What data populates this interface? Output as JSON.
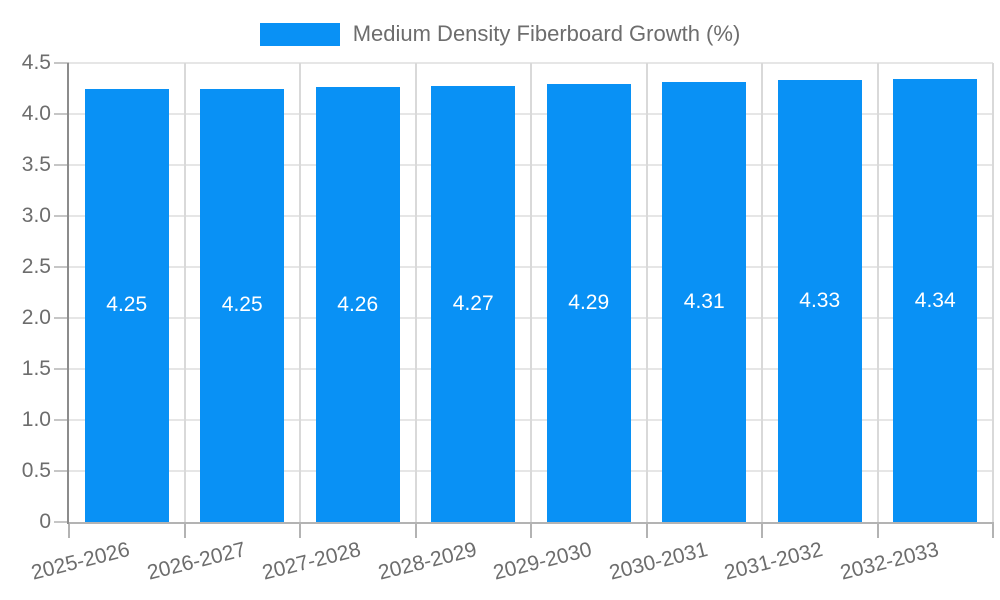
{
  "legend": {
    "label": "Medium Density Fiberboard Growth (%)"
  },
  "chart_data": {
    "type": "bar",
    "title": "Medium Density Fiberboard Growth (%)",
    "categories": [
      "2025-2026",
      "2026-2027",
      "2027-2028",
      "2028-2029",
      "2029-2030",
      "2030-2031",
      "2031-2032",
      "2032-2033"
    ],
    "values": [
      4.25,
      4.25,
      4.26,
      4.27,
      4.29,
      4.31,
      4.33,
      4.34
    ],
    "bar_labels": [
      "4.25",
      "4.25",
      "4.26",
      "4.27",
      "4.29",
      "4.31",
      "4.33",
      "4.34"
    ],
    "xlabel": "",
    "ylabel": "",
    "ylim": [
      0,
      4.5
    ],
    "ytick_values": [
      4.5,
      4.0,
      3.5,
      3.0,
      2.5,
      2.0,
      1.5,
      1.0,
      0.5,
      0
    ],
    "ytick_labels": [
      "4.5",
      "4.0",
      "3.5",
      "3.0",
      "2.5",
      "2.0",
      "1.5",
      "1.0",
      "0.5",
      "0"
    ],
    "grid": true,
    "legend_position": "top-center",
    "colors": {
      "bar": "#0991f5",
      "bar_label": "#ffffff",
      "grid_h": "#e6e6e6",
      "grid_v": "#d9d9d9",
      "axis_y": "#8c8c8c",
      "axis_x": "#b3b3b3",
      "tick": "#c6c6c6",
      "text": "#6d6d6d"
    }
  }
}
